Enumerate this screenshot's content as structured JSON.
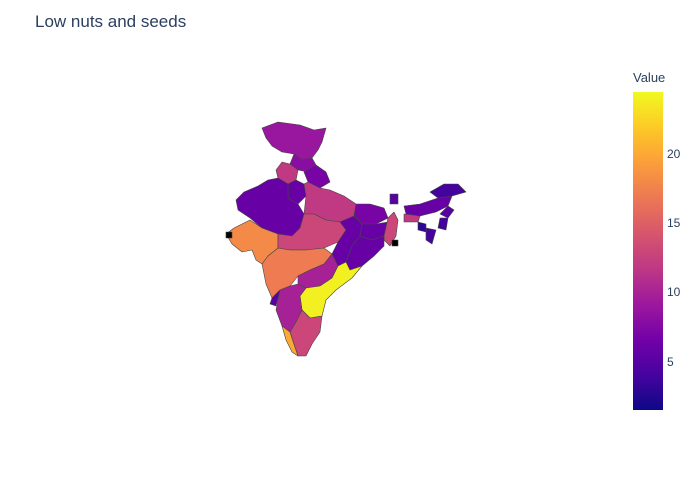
{
  "title": "Low nuts and seeds",
  "colorbar": {
    "title": "Value",
    "min": 1.5,
    "max": 24.5,
    "ticks": [
      "5",
      "10",
      "15",
      "20"
    ]
  },
  "regions": [
    {
      "id": "jammu-kashmir",
      "value": 9
    },
    {
      "id": "himachal",
      "value": 8
    },
    {
      "id": "punjab",
      "value": 12
    },
    {
      "id": "uttarakhand",
      "value": 7
    },
    {
      "id": "haryana",
      "value": 6
    },
    {
      "id": "rajasthan",
      "value": 6
    },
    {
      "id": "uttar-pradesh",
      "value": 12
    },
    {
      "id": "bihar",
      "value": 7
    },
    {
      "id": "gujarat",
      "value": 18
    },
    {
      "id": "madhya-pradesh",
      "value": 13
    },
    {
      "id": "jharkhand",
      "value": 6
    },
    {
      "id": "west-bengal",
      "value": 13
    },
    {
      "id": "chhattisgarh",
      "value": 6
    },
    {
      "id": "odisha",
      "value": 6
    },
    {
      "id": "maharashtra",
      "value": 17
    },
    {
      "id": "telangana",
      "value": 10
    },
    {
      "id": "andhra-pradesh",
      "value": 24
    },
    {
      "id": "karnataka",
      "value": 10
    },
    {
      "id": "goa",
      "value": 5
    },
    {
      "id": "kerala",
      "value": 20
    },
    {
      "id": "tamil-nadu",
      "value": 13
    },
    {
      "id": "sikkim",
      "value": 5
    },
    {
      "id": "assam",
      "value": 6
    },
    {
      "id": "arunachal",
      "value": 4
    },
    {
      "id": "meghalaya",
      "value": 12
    },
    {
      "id": "nagaland",
      "value": 5
    },
    {
      "id": "manipur",
      "value": 4
    },
    {
      "id": "mizoram",
      "value": 4
    },
    {
      "id": "tripura",
      "value": 3
    },
    {
      "id": "diu",
      "value": 1
    },
    {
      "id": "kolkata",
      "value": 1
    }
  ]
}
